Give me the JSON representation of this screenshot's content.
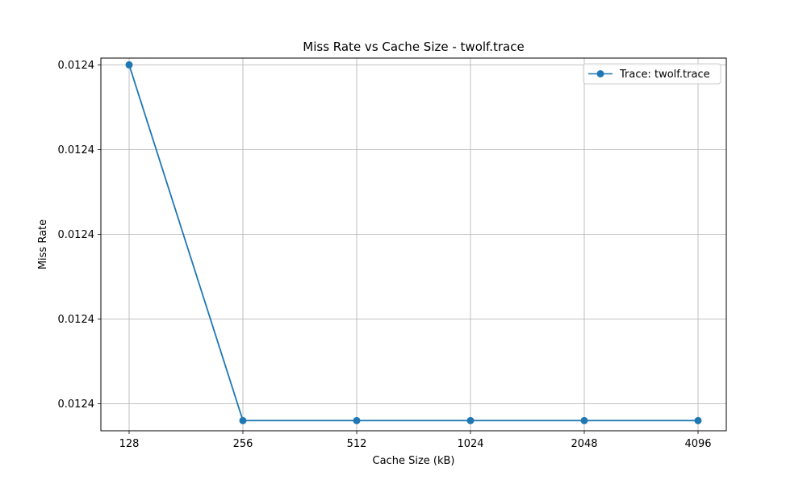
{
  "chart_data": {
    "type": "line",
    "title": "Miss Rate vs Cache Size - twolf.trace",
    "xlabel": "Cache Size (kB)",
    "ylabel": "Miss Rate",
    "categories": [
      "128",
      "256",
      "512",
      "1024",
      "2048",
      "4096"
    ],
    "x_scale": "log2",
    "y_tick_labels": [
      "0.0124",
      "0.0124",
      "0.0124",
      "0.0124",
      "0.0124"
    ],
    "series": [
      {
        "name": "Trace: twolf.trace",
        "color": "#1f77b4",
        "marker": "circle",
        "values": [
          0.012417,
          0.012396,
          0.012396,
          0.012396,
          0.012396,
          0.012396
        ]
      }
    ],
    "ylim": [
      0.0123954,
      0.0124174
    ],
    "y_ticks": [
      0.012397,
      0.012402,
      0.012407,
      0.012412,
      0.012417
    ],
    "grid": true,
    "legend_position": "top-right"
  }
}
